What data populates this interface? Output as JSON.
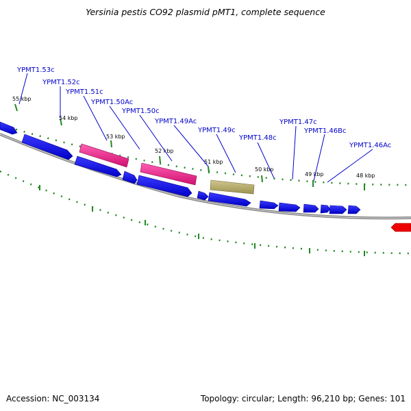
{
  "title": "Yersinia pestis CO92 plasmid pMT1, complete sequence",
  "accession": "Accession: NC_003134",
  "topology": "Topology: circular; Length: 96,210 bp; Genes: 101",
  "colors": {
    "cds_blue": "#0000ee",
    "pink": "#ee1a8c",
    "olive": "#b8ad6a",
    "red": "#ee0000",
    "backbone": "#8a8a8a",
    "tick_green": "#228822",
    "label_blue": "#0000cc"
  },
  "gene_labels": [
    "YPMT1.53c",
    "YPMT1.52c",
    "YPMT1.51c",
    "YPMT1.50Ac",
    "YPMT1.50c",
    "YPMT1.49Ac",
    "YPMT1.49c",
    "YPMT1.48c",
    "YPMT1.47c",
    "YPMT1.46Bc",
    "YPMT1.46Ac"
  ],
  "kbp_labels": [
    "55 kbp",
    "54 kbp",
    "53 kbp",
    "52 kbp",
    "51 kbp",
    "50 kbp",
    "49 kbp",
    "48 kbp"
  ]
}
